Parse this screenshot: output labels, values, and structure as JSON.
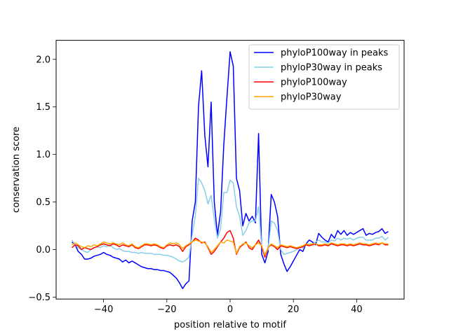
{
  "chart_data": {
    "type": "line",
    "title": "",
    "xlabel": "position relative to motif",
    "ylabel": "conservation score",
    "xlim": [
      -55,
      55
    ],
    "ylim": [
      -0.52,
      2.2
    ],
    "xticks": [
      -40,
      -20,
      0,
      20,
      40
    ],
    "yticks": [
      -0.5,
      0.0,
      0.5,
      1.0,
      1.5,
      2.0
    ],
    "xtick_labels": [
      "−40",
      "−20",
      "0",
      "20",
      "40"
    ],
    "ytick_labels": [
      "−0.5",
      "0.0",
      "0.5",
      "1.0",
      "1.5",
      "2.0"
    ],
    "legend_position": "top-right",
    "x": [
      -50,
      -49,
      -48,
      -47,
      -46,
      -45,
      -44,
      -43,
      -42,
      -41,
      -40,
      -39,
      -38,
      -37,
      -36,
      -35,
      -34,
      -33,
      -32,
      -31,
      -30,
      -29,
      -28,
      -27,
      -26,
      -25,
      -24,
      -23,
      -22,
      -21,
      -20,
      -19,
      -18,
      -17,
      -16,
      -15,
      -14,
      -13,
      -12,
      -11,
      -10,
      -9,
      -8,
      -7,
      -6,
      -5,
      -4,
      -3,
      -2,
      -1,
      0,
      1,
      2,
      3,
      4,
      5,
      6,
      7,
      8,
      9,
      10,
      11,
      12,
      13,
      14,
      15,
      16,
      17,
      18,
      19,
      20,
      21,
      22,
      23,
      24,
      25,
      26,
      27,
      28,
      29,
      30,
      31,
      32,
      33,
      34,
      35,
      36,
      37,
      38,
      39,
      40,
      41,
      42,
      43,
      44,
      45,
      46,
      47,
      48,
      49,
      50
    ],
    "series": [
      {
        "name": "phyloP100way in peaks",
        "color": "#0000ff",
        "values": [
          0.08,
          0.05,
          -0.02,
          -0.05,
          -0.1,
          -0.1,
          -0.09,
          -0.07,
          -0.06,
          -0.05,
          -0.03,
          -0.05,
          -0.06,
          -0.08,
          -0.09,
          -0.1,
          -0.13,
          -0.11,
          -0.14,
          -0.12,
          -0.14,
          -0.16,
          -0.18,
          -0.19,
          -0.2,
          -0.2,
          -0.21,
          -0.21,
          -0.22,
          -0.22,
          -0.23,
          -0.24,
          -0.27,
          -0.3,
          -0.35,
          -0.41,
          -0.36,
          -0.33,
          0.3,
          0.5,
          1.5,
          1.88,
          1.2,
          0.87,
          1.55,
          0.5,
          0.15,
          0.4,
          1.1,
          1.6,
          2.08,
          1.93,
          0.75,
          0.62,
          0.25,
          0.38,
          0.3,
          0.35,
          0.28,
          1.22,
          -0.05,
          -0.14,
          -0.02,
          0.58,
          0.5,
          0.35,
          -0.05,
          -0.15,
          -0.23,
          -0.18,
          -0.12,
          -0.06,
          0.0,
          -0.02,
          0.06,
          0.1,
          0.08,
          0.05,
          0.17,
          0.13,
          0.1,
          0.08,
          0.16,
          0.12,
          0.2,
          0.16,
          0.2,
          0.15,
          0.18,
          0.16,
          0.18,
          0.2,
          0.22,
          0.15,
          0.17,
          0.16,
          0.18,
          0.19,
          0.22,
          0.17,
          0.19
        ]
      },
      {
        "name": "phyloP30way in peaks",
        "color": "#87ceeb",
        "values": [
          0.1,
          0.05,
          0.02,
          0.0,
          -0.02,
          -0.03,
          0.0,
          0.02,
          0.03,
          0.02,
          0.04,
          0.03,
          0.05,
          0.02,
          0.0,
          0.01,
          -0.01,
          -0.02,
          -0.02,
          -0.03,
          -0.03,
          -0.04,
          -0.03,
          -0.04,
          -0.04,
          -0.04,
          -0.05,
          -0.05,
          -0.05,
          -0.06,
          -0.06,
          -0.07,
          -0.08,
          -0.1,
          -0.12,
          -0.13,
          -0.11,
          -0.08,
          0.15,
          0.35,
          0.75,
          0.7,
          0.62,
          0.48,
          0.57,
          0.32,
          0.12,
          0.22,
          0.6,
          0.6,
          0.73,
          0.7,
          0.45,
          0.35,
          0.15,
          0.2,
          0.28,
          0.3,
          0.3,
          0.45,
          0.02,
          -0.05,
          0.0,
          0.3,
          0.28,
          0.2,
          0.0,
          -0.05,
          -0.04,
          -0.03,
          -0.02,
          0.0,
          0.02,
          0.02,
          0.05,
          0.06,
          0.05,
          0.08,
          0.1,
          0.08,
          0.08,
          0.07,
          0.1,
          0.09,
          0.12,
          0.1,
          0.12,
          0.11,
          0.12,
          0.1,
          0.12,
          0.13,
          0.13,
          0.1,
          0.1,
          0.1,
          0.12,
          0.12,
          0.14,
          0.1,
          0.13
        ]
      },
      {
        "name": "phyloP100way",
        "color": "#ff0000",
        "values": [
          0.02,
          0.05,
          0.04,
          0.0,
          0.02,
          0.01,
          0.0,
          0.02,
          0.03,
          0.05,
          0.06,
          0.05,
          0.04,
          0.06,
          0.05,
          0.03,
          0.05,
          0.04,
          0.03,
          0.05,
          0.02,
          0.01,
          0.03,
          0.05,
          0.05,
          0.04,
          0.05,
          0.04,
          0.02,
          0.01,
          0.04,
          0.05,
          0.04,
          0.05,
          0.03,
          -0.02,
          0.03,
          0.05,
          0.08,
          0.12,
          0.1,
          0.07,
          0.08,
          0.02,
          -0.05,
          -0.02,
          0.03,
          0.08,
          0.12,
          0.18,
          0.2,
          0.12,
          -0.05,
          0.02,
          0.05,
          0.08,
          0.02,
          0.0,
          0.05,
          0.1,
          0.03,
          -0.08,
          0.02,
          0.05,
          0.03,
          0.0,
          0.04,
          0.03,
          0.02,
          0.03,
          0.02,
          0.01,
          0.02,
          0.03,
          0.05,
          0.04,
          0.05,
          0.06,
          0.04,
          0.04,
          0.05,
          0.04,
          0.06,
          0.05,
          0.04,
          0.05,
          0.05,
          0.04,
          0.05,
          0.04,
          0.05,
          0.06,
          0.05,
          0.05,
          0.04,
          0.05,
          0.06,
          0.05,
          0.07,
          0.05,
          0.05
        ]
      },
      {
        "name": "phyloP30way",
        "color": "#ffa500",
        "values": [
          0.05,
          0.07,
          0.05,
          0.03,
          0.02,
          0.04,
          0.03,
          0.05,
          0.04,
          0.06,
          0.08,
          0.07,
          0.06,
          0.07,
          0.06,
          0.05,
          0.07,
          0.05,
          0.04,
          0.06,
          0.03,
          0.02,
          0.04,
          0.06,
          0.06,
          0.05,
          0.06,
          0.05,
          0.03,
          0.02,
          0.05,
          0.07,
          0.06,
          0.07,
          0.05,
          0.01,
          0.04,
          0.06,
          0.08,
          0.1,
          0.09,
          0.08,
          0.07,
          0.03,
          -0.03,
          0.0,
          0.04,
          0.08,
          0.07,
          0.1,
          0.09,
          0.08,
          -0.04,
          0.03,
          0.06,
          0.07,
          0.04,
          0.02,
          0.05,
          0.07,
          0.04,
          -0.06,
          0.02,
          0.06,
          0.04,
          0.02,
          0.05,
          0.04,
          0.03,
          0.04,
          0.03,
          0.02,
          0.03,
          0.04,
          0.06,
          0.05,
          0.06,
          0.06,
          0.05,
          0.05,
          0.06,
          0.05,
          0.07,
          0.06,
          0.05,
          0.06,
          0.06,
          0.05,
          0.06,
          0.05,
          0.06,
          0.07,
          0.06,
          0.06,
          0.05,
          0.06,
          0.07,
          0.06,
          0.07,
          0.06,
          0.06
        ]
      }
    ]
  }
}
